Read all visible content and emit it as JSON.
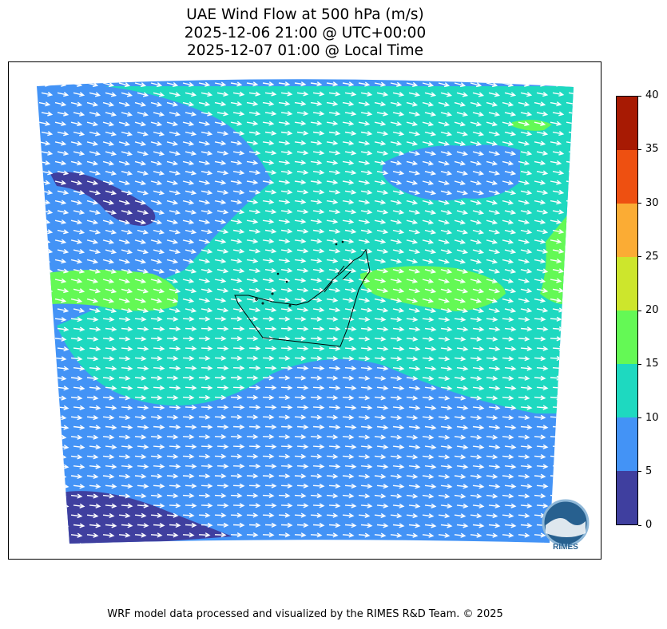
{
  "title": {
    "line1": "UAE Wind Flow at 500 hPa (m/s)",
    "line2": "2025-12-06 21:00 @ UTC+00:00",
    "line3": "2025-12-07 01:00 @ Local Time"
  },
  "colorbar": {
    "min": 0,
    "max": 40,
    "ticks": [
      "0",
      "5",
      "10",
      "15",
      "20",
      "25",
      "30",
      "35",
      "40"
    ],
    "colors": [
      "#3f3f9f",
      "#4393f6",
      "#1ed9c0",
      "#64f955",
      "#cde62c",
      "#fbac34",
      "#ee5011",
      "#a71a03"
    ]
  },
  "map": {
    "variable": "wind speed at 500 hPa",
    "units": "m/s",
    "wind_direction": "west-northwest to east-southeast",
    "logo_text": "RIMES"
  },
  "footer": "WRF model data processed and visualized by the RIMES R&D Team. © 2025"
}
